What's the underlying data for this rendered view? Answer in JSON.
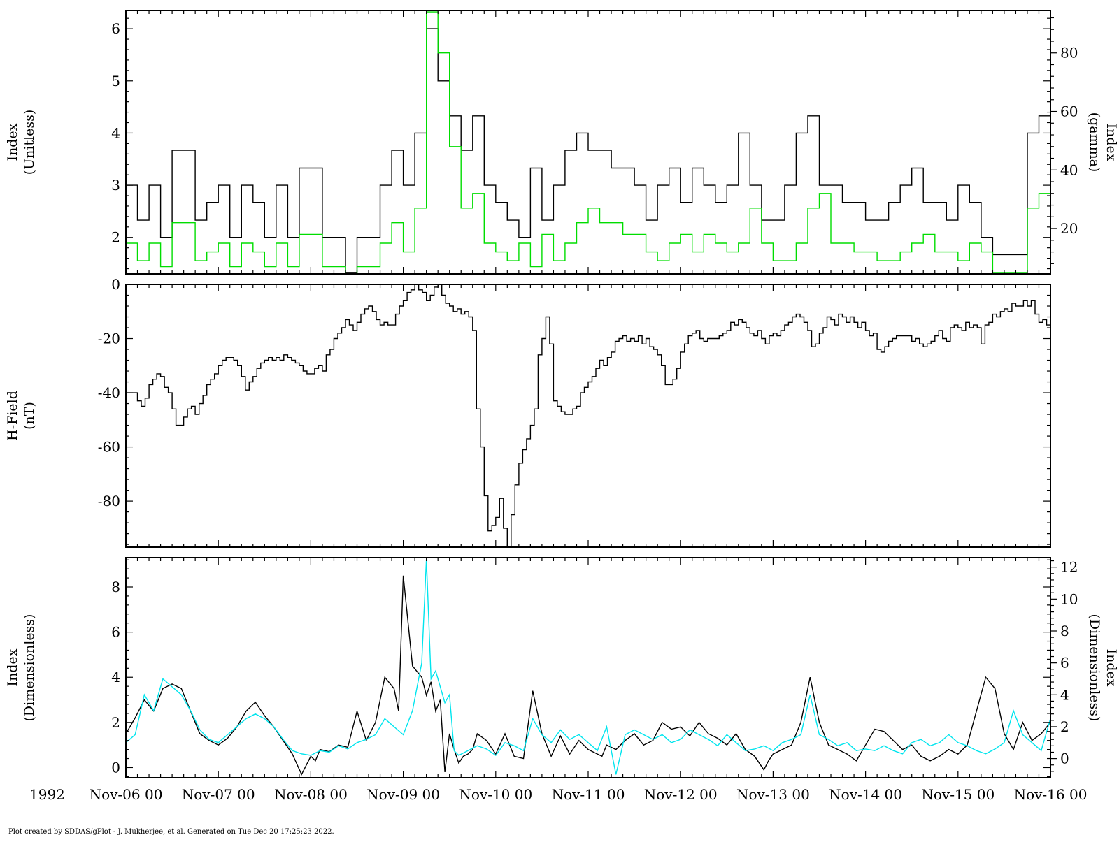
{
  "figure": {
    "year": "1992",
    "footer": "Plot created by SDDAS/gPlot - J. Mukherjee, et al.  Generated on Tue Dec 20 17:25:23 2022.",
    "x_ticks": [
      "Nov-06 00",
      "Nov-07 00",
      "Nov-08 00",
      "Nov-09 00",
      "Nov-10 00",
      "Nov-11 00",
      "Nov-12 00",
      "Nov-13 00",
      "Nov-14 00",
      "Nov-15 00",
      "Nov-16 00"
    ],
    "x_range_days": [
      0,
      10
    ]
  },
  "chart_data": [
    {
      "type": "line",
      "panel": "top",
      "left_axis": {
        "label_line1": "Index",
        "label_line2": "(Unitless)",
        "ylim": [
          1.3,
          6.35
        ],
        "ticks": [
          2,
          3,
          4,
          5,
          6
        ],
        "tick_labels": [
          "2",
          "3",
          "4",
          "5",
          "6"
        ]
      },
      "right_axis": {
        "label_line1": "Index",
        "label_line2": "(gamma)",
        "ylim": [
          4.5,
          94.5
        ],
        "ticks": [
          20,
          40,
          60,
          80
        ],
        "tick_labels": [
          "20",
          "40",
          "60",
          "80"
        ]
      },
      "step_hours": 3,
      "series": [
        {
          "axis": "left",
          "color": "#000000",
          "values": [
            3,
            2.33,
            3,
            2,
            3.67,
            3.67,
            2.33,
            2.67,
            3,
            2,
            3,
            2.67,
            2,
            3,
            2,
            3.33,
            3.33,
            2,
            2,
            1.33,
            2,
            2,
            3,
            3.67,
            3,
            4,
            6,
            5,
            4.33,
            3.67,
            4.33,
            3,
            2.67,
            2.33,
            2,
            3.33,
            2.33,
            3,
            3.67,
            4,
            3.67,
            3.67,
            3.33,
            3.33,
            3,
            2.33,
            3,
            3.33,
            2.67,
            3.33,
            3,
            2.67,
            3,
            4,
            3,
            2.33,
            2.33,
            3,
            4,
            4.33,
            3,
            3,
            2.67,
            2.67,
            2.33,
            2.33,
            2.67,
            3,
            3.33,
            2.67,
            2.67,
            2.33,
            3,
            2.67,
            2,
            1.67,
            1.67,
            1.67,
            4,
            4.33,
            3.33,
            4.67
          ]
        },
        {
          "axis": "right",
          "color": "#00dd00",
          "values": [
            15,
            9,
            15,
            7,
            22,
            22,
            9,
            12,
            15,
            7,
            15,
            12,
            7,
            15,
            7,
            18,
            18,
            7,
            7,
            4,
            7,
            7,
            15,
            22,
            12,
            27,
            94,
            80,
            48,
            27,
            32,
            15,
            12,
            9,
            15,
            7,
            18,
            9,
            15,
            22,
            27,
            22,
            22,
            18,
            18,
            12,
            9,
            15,
            18,
            12,
            18,
            15,
            12,
            15,
            27,
            15,
            9,
            9,
            15,
            27,
            32,
            15,
            15,
            12,
            12,
            9,
            9,
            12,
            15,
            18,
            12,
            12,
            9,
            15,
            12,
            5,
            5,
            5,
            27,
            32,
            18,
            39
          ]
        }
      ]
    },
    {
      "type": "line",
      "panel": "middle",
      "left_axis": {
        "label_line1": "H-Field",
        "label_line2": "(nT)",
        "ylim": [
          -97,
          0
        ],
        "ticks": [
          0,
          -20,
          -40,
          -60,
          -80
        ],
        "tick_labels": [
          "0",
          "-20",
          "-40",
          "-60",
          "-80"
        ]
      },
      "step_hours": 1,
      "series": [
        {
          "axis": "left",
          "color": "#000000",
          "values": [
            -40,
            -40,
            -40,
            -43,
            -45,
            -42,
            -37,
            -35,
            -33,
            -34,
            -38,
            -40,
            -46,
            -52,
            -52,
            -49,
            -46,
            -45,
            -48,
            -44,
            -41,
            -37,
            -35,
            -33,
            -30,
            -28,
            -27,
            -27,
            -28,
            -30,
            -34,
            -39,
            -36,
            -34,
            -31,
            -29,
            -28,
            -27,
            -28,
            -27,
            -28,
            -26,
            -27,
            -28,
            -29,
            -30,
            -32,
            -33,
            -33,
            -31,
            -30,
            -32,
            -26,
            -24,
            -20,
            -18,
            -16,
            -13,
            -15,
            -17,
            -14,
            -11,
            -9,
            -8,
            -10,
            -13,
            -15,
            -14,
            -15,
            -15,
            -11,
            -8,
            -6,
            -3,
            -2,
            0,
            -2,
            -3,
            -6,
            -4,
            -1,
            0,
            -4,
            -7,
            -8,
            -10,
            -9,
            -11,
            -10,
            -12,
            -17,
            -46,
            -60,
            -78,
            -91,
            -89,
            -86,
            -79,
            -90,
            -98,
            -85,
            -74,
            -66,
            -61,
            -57,
            -52,
            -46,
            -26,
            -20,
            -12,
            -22,
            -43,
            -45,
            -47,
            -48,
            -48,
            -46,
            -45,
            -40,
            -38,
            -36,
            -34,
            -31,
            -28,
            -30,
            -27,
            -25,
            -21,
            -20,
            -19,
            -21,
            -20,
            -21,
            -19,
            -22,
            -20,
            -23,
            -24,
            -26,
            -30,
            -37,
            -37,
            -35,
            -31,
            -25,
            -22,
            -19,
            -18,
            -17,
            -20,
            -21,
            -20,
            -20,
            -20,
            -19,
            -18,
            -17,
            -14,
            -15,
            -13,
            -14,
            -16,
            -18,
            -19,
            -17,
            -20,
            -22,
            -19,
            -18,
            -19,
            -17,
            -15,
            -14,
            -12,
            -11,
            -12,
            -14,
            -17,
            -23,
            -22,
            -18,
            -16,
            -12,
            -13,
            -15,
            -11,
            -12,
            -14,
            -12,
            -14,
            -16,
            -14,
            -17,
            -19,
            -18,
            -24,
            -25,
            -23,
            -21,
            -20,
            -19,
            -19,
            -19,
            -19,
            -21,
            -20,
            -22,
            -23,
            -22,
            -21,
            -19,
            -17,
            -20,
            -21,
            -16,
            -15,
            -16,
            -17,
            -14,
            -16,
            -15,
            -16,
            -22,
            -15,
            -14,
            -11,
            -12,
            -10,
            -9,
            -10,
            -7,
            -8,
            -8,
            -6,
            -8,
            -6,
            -11,
            -14,
            -13,
            -15,
            -14,
            -15,
            -16,
            -12,
            -10,
            -10,
            -14,
            -10,
            -10,
            -16,
            -26,
            -35,
            -30,
            -25,
            -33,
            -36,
            -32,
            -30,
            -26
          ]
        }
      ]
    },
    {
      "type": "line",
      "panel": "bottom",
      "left_axis": {
        "label_line1": "Index",
        "label_line2": "(Dimensionless)",
        "ylim": [
          -0.45,
          9.3
        ],
        "ticks": [
          0,
          2,
          4,
          6,
          8
        ],
        "tick_labels": [
          "0",
          "2",
          "4",
          "6",
          "8"
        ]
      },
      "right_axis": {
        "label_line1": "Index",
        "label_line2": "(Dimensionless)",
        "ylim": [
          -1.2,
          12.6
        ],
        "ticks": [
          0,
          2,
          4,
          6,
          8,
          10,
          12
        ],
        "tick_labels": [
          "0",
          "2",
          "4",
          "6",
          "8",
          "10",
          "12"
        ]
      },
      "series": [
        {
          "axis": "left",
          "color": "#000000",
          "x_days": [
            0,
            0.1,
            0.2,
            0.3,
            0.4,
            0.5,
            0.6,
            0.7,
            0.8,
            0.9,
            1.0,
            1.1,
            1.2,
            1.3,
            1.4,
            1.5,
            1.6,
            1.7,
            1.8,
            1.9,
            2.0,
            2.05,
            2.1,
            2.2,
            2.3,
            2.4,
            2.5,
            2.6,
            2.7,
            2.8,
            2.9,
            2.95,
            3.0,
            3.1,
            3.2,
            3.25,
            3.3,
            3.35,
            3.4,
            3.45,
            3.5,
            3.55,
            3.6,
            3.65,
            3.7,
            3.75,
            3.8,
            3.9,
            4.0,
            4.1,
            4.2,
            4.3,
            4.4,
            4.5,
            4.6,
            4.7,
            4.8,
            4.9,
            5.0,
            5.1,
            5.15,
            5.2,
            5.3,
            5.4,
            5.5,
            5.6,
            5.7,
            5.8,
            5.9,
            6.0,
            6.1,
            6.2,
            6.3,
            6.4,
            6.5,
            6.6,
            6.7,
            6.8,
            6.9,
            6.95,
            7.0,
            7.1,
            7.2,
            7.3,
            7.4,
            7.5,
            7.55,
            7.6,
            7.7,
            7.8,
            7.9,
            8.0,
            8.1,
            8.2,
            8.3,
            8.4,
            8.5,
            8.6,
            8.7,
            8.8,
            8.9,
            9.0,
            9.1,
            9.2,
            9.3,
            9.4,
            9.5,
            9.6,
            9.7,
            9.8,
            9.9,
            10.0
          ],
          "values": [
            1.5,
            2.2,
            3.0,
            2.5,
            3.5,
            3.7,
            3.5,
            2.5,
            1.5,
            1.2,
            1.0,
            1.3,
            1.8,
            2.5,
            2.9,
            2.3,
            1.8,
            1.2,
            0.6,
            -0.3,
            0.5,
            0.3,
            0.8,
            0.7,
            1.0,
            0.9,
            2.5,
            1.2,
            2.0,
            4.0,
            3.5,
            2.5,
            8.5,
            4.5,
            4.0,
            3.2,
            3.8,
            2.5,
            3.0,
            -0.2,
            1.5,
            0.8,
            0.2,
            0.5,
            0.6,
            0.8,
            1.5,
            1.2,
            0.6,
            1.5,
            0.5,
            0.4,
            3.4,
            1.5,
            0.5,
            1.4,
            0.6,
            1.2,
            0.8,
            0.6,
            0.5,
            1.0,
            0.8,
            1.2,
            1.5,
            1.0,
            1.2,
            2.0,
            1.7,
            1.8,
            1.4,
            2.0,
            1.5,
            1.3,
            1.0,
            1.5,
            0.8,
            0.5,
            -0.1,
            0.3,
            0.6,
            0.8,
            1.0,
            2.0,
            4.0,
            2.0,
            1.5,
            1.0,
            0.8,
            0.6,
            0.3,
            1.0,
            1.7,
            1.6,
            1.2,
            0.8,
            1.0,
            0.5,
            0.3,
            0.5,
            0.8,
            0.6,
            1.0,
            2.5,
            4.0,
            3.5,
            1.5,
            0.8,
            2.0,
            1.2,
            1.5,
            2.0
          ]
        },
        {
          "axis": "right",
          "color": "#00e5ee",
          "x_days": [
            0,
            0.1,
            0.2,
            0.3,
            0.4,
            0.5,
            0.6,
            0.7,
            0.8,
            0.9,
            1.0,
            1.1,
            1.2,
            1.3,
            1.4,
            1.5,
            1.6,
            1.7,
            1.8,
            1.9,
            2.0,
            2.1,
            2.2,
            2.3,
            2.4,
            2.5,
            2.6,
            2.7,
            2.8,
            2.9,
            3.0,
            3.1,
            3.2,
            3.25,
            3.3,
            3.35,
            3.4,
            3.45,
            3.5,
            3.55,
            3.6,
            3.7,
            3.8,
            3.9,
            4.0,
            4.1,
            4.2,
            4.3,
            4.4,
            4.5,
            4.6,
            4.7,
            4.8,
            4.9,
            5.0,
            5.1,
            5.2,
            5.3,
            5.4,
            5.5,
            5.6,
            5.7,
            5.8,
            5.9,
            6.0,
            6.1,
            6.2,
            6.3,
            6.4,
            6.5,
            6.6,
            6.7,
            6.8,
            6.9,
            7.0,
            7.1,
            7.2,
            7.3,
            7.4,
            7.5,
            7.6,
            7.7,
            7.8,
            7.9,
            8.0,
            8.1,
            8.2,
            8.3,
            8.4,
            8.5,
            8.6,
            8.7,
            8.8,
            8.9,
            9.0,
            9.1,
            9.2,
            9.3,
            9.4,
            9.5,
            9.6,
            9.7,
            9.8,
            9.9,
            10.0
          ],
          "values": [
            1,
            1.5,
            4.0,
            3.0,
            5.0,
            4.5,
            4.0,
            3.0,
            1.8,
            1.2,
            1.0,
            1.5,
            2.0,
            2.5,
            2.8,
            2.5,
            2.0,
            1.2,
            0.5,
            0.3,
            0.2,
            0.5,
            0.4,
            0.8,
            0.6,
            1.0,
            1.2,
            1.5,
            2.5,
            2.0,
            1.5,
            3.0,
            6.0,
            12.5,
            5.0,
            5.5,
            4.5,
            3.5,
            4.0,
            0.5,
            0.2,
            0.5,
            0.8,
            0.6,
            0.2,
            1.0,
            0.8,
            0.5,
            2.5,
            1.5,
            1.0,
            1.8,
            1.2,
            1.5,
            1.0,
            0.5,
            2.0,
            -1.0,
            1.5,
            1.8,
            1.5,
            1.2,
            1.5,
            1.0,
            1.2,
            1.8,
            1.5,
            1.2,
            0.8,
            1.5,
            1.0,
            0.5,
            0.6,
            0.8,
            0.5,
            1.0,
            1.2,
            1.5,
            4.0,
            1.5,
            1.2,
            0.8,
            1.0,
            0.5,
            0.6,
            0.5,
            0.8,
            0.5,
            0.3,
            1.0,
            1.2,
            0.8,
            1.0,
            1.5,
            1.0,
            0.8,
            0.5,
            0.3,
            0.6,
            1.0,
            3.0,
            1.5,
            1.0,
            0.5,
            2.5
          ]
        }
      ]
    }
  ]
}
